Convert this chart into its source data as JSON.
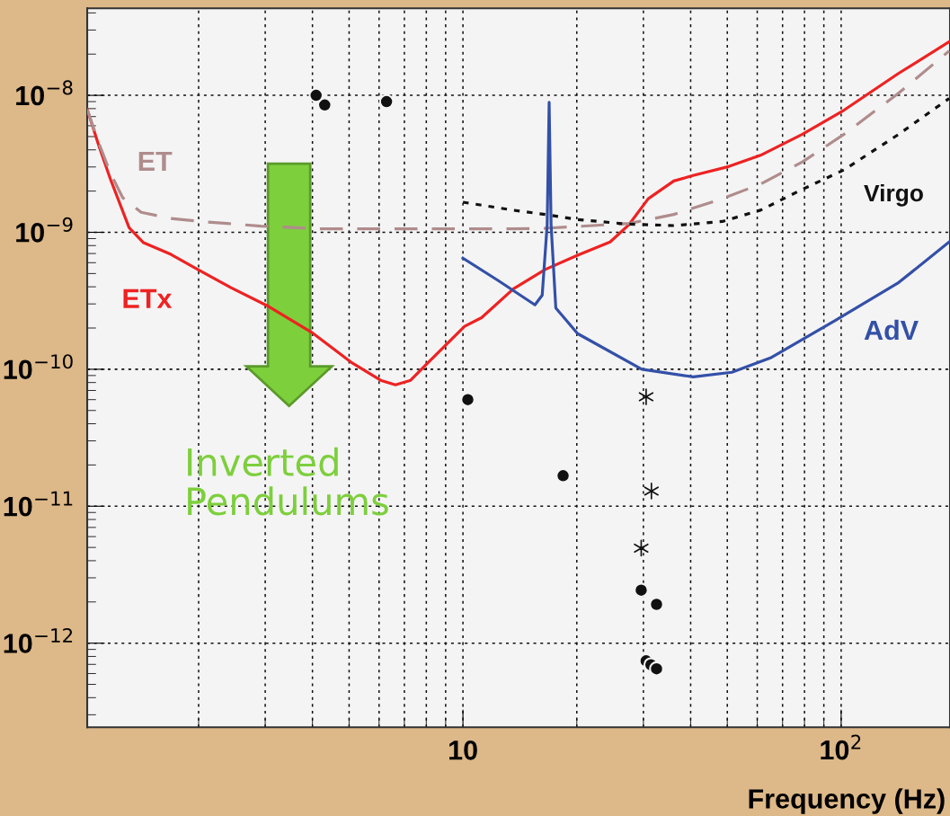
{
  "chart_data": {
    "type": "line",
    "xlabel": "Frequency (Hz)",
    "log": "xy",
    "xlim": [
      1.015,
      194
    ],
    "ylim": [
      2.43e-13,
      4.32e-08
    ],
    "xticks": [
      {
        "value": 10,
        "label": "10"
      },
      {
        "value": 100,
        "label": "10$^{2}$"
      }
    ],
    "yticks": [
      {
        "value": 1e-12,
        "label": "10$^{−12}$"
      },
      {
        "value": 1e-11,
        "label": "10$^{−11}$"
      },
      {
        "value": 1e-10,
        "label": "10$^{−10}$"
      },
      {
        "value": 1e-09,
        "label": "10$^{−9}$"
      },
      {
        "value": 1e-08,
        "label": "10$^{−8}$"
      }
    ],
    "grid": true,
    "legend": false,
    "annotations": [
      "Inverted\nPendulums"
    ],
    "series": [
      {
        "name": "ETx",
        "color": "#ee2222",
        "line_style": "solid",
        "x": [
          1.015,
          1.09,
          1.17,
          1.31,
          1.43,
          1.69,
          1.99,
          2.43,
          3.03,
          3.98,
          5.05,
          6.06,
          6.63,
          7.27,
          7.96,
          10.1,
          11.2,
          13.6,
          16.5,
          20.1,
          24.5,
          27.5,
          30.9,
          36.1,
          40.6,
          50.4,
          61.2,
          79.0,
          101.8,
          142,
          193
        ],
        "values": [
          7.9e-09,
          4.26e-09,
          2.43e-09,
          1.08e-09,
          8.4e-10,
          6.9e-10,
          5.35e-10,
          3.96e-10,
          2.92e-10,
          1.86e-10,
          1.13e-10,
          8.3e-11,
          7.7e-11,
          8.3e-11,
          1.07e-10,
          2.06e-10,
          2.38e-10,
          3.87e-10,
          5.35e-10,
          6.8e-10,
          8.5e-10,
          1.14e-09,
          1.76e-09,
          2.37e-09,
          2.6e-09,
          3.02e-09,
          3.65e-09,
          5.2e-09,
          7.8e-09,
          1.45e-08,
          2.46e-08
        ]
      },
      {
        "name": "ET",
        "color": "#b08c8c",
        "line_style": "dashed",
        "x": [
          1.015,
          1.09,
          1.17,
          1.26,
          1.41,
          1.69,
          2.03,
          2.92,
          4.21,
          13.5,
          16.5,
          27.5,
          36.1,
          48.5,
          61.2,
          79.0,
          101.8,
          142,
          193
        ],
        "values": [
          7.9e-09,
          4.46e-09,
          2.69e-09,
          1.79e-09,
          1.4e-09,
          1.26e-09,
          1.2e-09,
          1.11e-09,
          1.06e-09,
          1.06e-09,
          1.07e-09,
          1.16e-09,
          1.35e-09,
          1.76e-09,
          2.25e-09,
          3.27e-09,
          5.2e-09,
          1.04e-08,
          2.11e-08
        ]
      },
      {
        "name": "Virgo",
        "color": "#111111",
        "line_style": "dotted",
        "x": [
          10.0,
          13.6,
          16.5,
          20.1,
          27.0,
          36.1,
          48.5,
          61.2,
          79.0,
          101.8,
          142,
          193
        ],
        "values": [
          1.66e-09,
          1.45e-09,
          1.35e-09,
          1.24e-09,
          1.15e-09,
          1.12e-09,
          1.2e-09,
          1.45e-09,
          2.06e-09,
          2.86e-09,
          5.2e-09,
          9.5e-09
        ]
      },
      {
        "name": "AdV",
        "color": "#3350a8",
        "line_style": "solid",
        "x": [
          10.0,
          12.4,
          15.5,
          16.2,
          16.7,
          16.9,
          17.1,
          17.6,
          20.1,
          29.7,
          40.6,
          51.4,
          65.0,
          96.0,
          142,
          193
        ],
        "values": [
          6.47e-10,
          4.44e-10,
          2.95e-10,
          3.47e-10,
          1.14e-09,
          8.9e-09,
          1.14e-09,
          2.8e-10,
          1.82e-10,
          1e-10,
          8.8e-11,
          9.5e-11,
          1.21e-10,
          2.25e-10,
          4.3e-10,
          8.5e-10
        ]
      },
      {
        "type": "scatter",
        "marker": "circle",
        "color": "#111111",
        "x": [
          4.31,
          6.28,
          10.3,
          18.4,
          32.5
        ],
        "values": [
          8.5e-09,
          9e-09,
          6e-11,
          1.67e-11,
          1.92e-12
        ]
      },
      {
        "type": "scatter",
        "marker": "circle",
        "color": "#111111",
        "x": [
          4.09,
          29.6,
          30.5,
          31.4,
          32.5
        ],
        "values": [
          1e-08,
          2.44e-12,
          7.43e-13,
          6.95e-13,
          6.5e-13
        ]
      },
      {
        "type": "scatter",
        "marker": "cross",
        "color": "#111111",
        "x": [
          30.5,
          31.5,
          29.6
        ],
        "values": [
          6.3e-11,
          1.29e-11,
          4.94e-12
        ]
      }
    ]
  }
}
